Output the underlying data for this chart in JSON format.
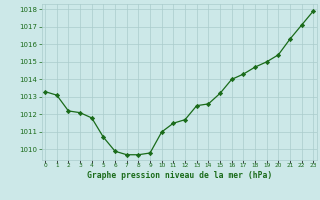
{
  "x": [
    0,
    1,
    2,
    3,
    4,
    5,
    6,
    7,
    8,
    9,
    10,
    11,
    12,
    13,
    14,
    15,
    16,
    17,
    18,
    19,
    20,
    21,
    22,
    23
  ],
  "y": [
    1013.3,
    1013.1,
    1012.2,
    1012.1,
    1011.8,
    1010.7,
    1009.9,
    1009.7,
    1009.7,
    1009.8,
    1011.0,
    1011.5,
    1011.7,
    1012.5,
    1012.6,
    1013.2,
    1014.0,
    1014.3,
    1014.7,
    1015.0,
    1015.4,
    1016.3,
    1017.1,
    1017.9
  ],
  "line_color": "#1a6b1a",
  "marker": "D",
  "markersize": 2.2,
  "linewidth": 0.9,
  "bg_color": "#cce8e8",
  "grid_color": "#aacccc",
  "xlabel": "Graphe pression niveau de la mer (hPa)",
  "xlabel_color": "#1a6b1a",
  "tick_color": "#1a6b1a",
  "ylim": [
    1009.4,
    1018.3
  ],
  "yticks": [
    1010,
    1011,
    1012,
    1013,
    1014,
    1015,
    1016,
    1017,
    1018
  ],
  "xlim": [
    -0.3,
    23.3
  ],
  "xticks": [
    0,
    1,
    2,
    3,
    4,
    5,
    6,
    7,
    8,
    9,
    10,
    11,
    12,
    13,
    14,
    15,
    16,
    17,
    18,
    19,
    20,
    21,
    22,
    23
  ],
  "xtick_labels": [
    "0",
    "1",
    "2",
    "3",
    "4",
    "5",
    "6",
    "7",
    "8",
    "9",
    "10",
    "11",
    "12",
    "13",
    "14",
    "15",
    "16",
    "17",
    "18",
    "19",
    "20",
    "21",
    "22",
    "23"
  ],
  "ytick_fontsize": 5.0,
  "xtick_fontsize": 4.2,
  "xlabel_fontsize": 5.8
}
